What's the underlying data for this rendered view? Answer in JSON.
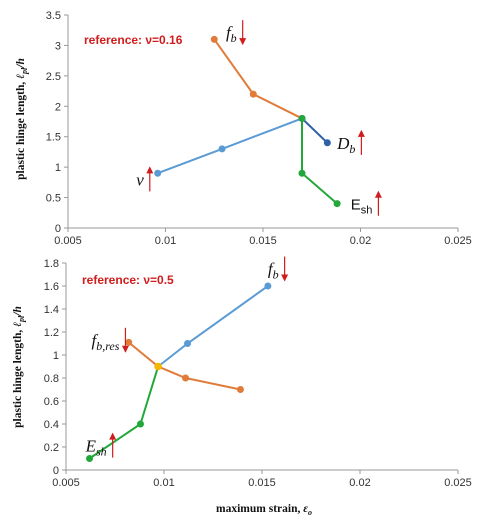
{
  "chart_data": [
    {
      "type": "line",
      "ylabel": "plastic hinge length, ℓpl/h",
      "reference": "reference: ν=0.16",
      "xlim": [
        0.005,
        0.025
      ],
      "ylim": [
        0,
        3.5
      ],
      "xticks": [
        "0.005",
        "0.01",
        "0.015",
        "0.02",
        "0.025"
      ],
      "yticks": [
        "0",
        "0.5",
        "1",
        "1.5",
        "2",
        "2.5",
        "3",
        "3.5"
      ],
      "series": [
        {
          "name": "fb",
          "color": "#e07b39",
          "x": [
            0.0125,
            0.0145,
            0.017
          ],
          "y": [
            3.1,
            2.2,
            1.8
          ]
        },
        {
          "name": "ν",
          "color": "#5b9bd5",
          "x": [
            0.0096,
            0.0129,
            0.017
          ],
          "y": [
            0.9,
            1.3,
            1.8
          ]
        },
        {
          "name": "Db",
          "color": "#2e5fa8",
          "x": [
            0.017,
            0.0183
          ],
          "y": [
            1.8,
            1.4
          ]
        },
        {
          "name": "Esh",
          "color": "#22a83a",
          "x": [
            0.017,
            0.017,
            0.0188
          ],
          "y": [
            1.8,
            0.9,
            0.4
          ]
        }
      ],
      "annotations": [
        {
          "text": "f",
          "sub": "b",
          "style": "italic",
          "arrow": "down",
          "x": 0.0131,
          "y": 3.12
        },
        {
          "text": "D",
          "sub": "b",
          "style": "italic",
          "arrow": "up",
          "x": 0.0188,
          "y": 1.3
        },
        {
          "text": "ν",
          "sub": "",
          "style": "italic",
          "arrow": "up",
          "x": 0.0085,
          "y": 0.7
        },
        {
          "text": "E",
          "sub": "sh",
          "style": "sans",
          "arrow": "up",
          "x": 0.0195,
          "y": 0.3
        }
      ]
    },
    {
      "type": "line",
      "ylabel": "plastic hinge length, ℓpl/h",
      "xlabel": "maximum strain, εo",
      "reference": "reference: ν=0.5",
      "xlim": [
        0.005,
        0.025
      ],
      "ylim": [
        0,
        1.8
      ],
      "xticks": [
        "0.005",
        "0.01",
        "0.015",
        "0.02",
        "0.025"
      ],
      "yticks": [
        "0",
        "0.2",
        "0.4",
        "0.6",
        "0.8",
        "1",
        "1.2",
        "1.4",
        "1.6",
        "1.8"
      ],
      "series": [
        {
          "name": "fb",
          "color": "#5b9bd5",
          "x": [
            0.0097,
            0.0112,
            0.0153
          ],
          "y": [
            0.9,
            1.1,
            1.6
          ]
        },
        {
          "name": "fb,res",
          "color": "#e07b39",
          "x": [
            0.0082,
            0.0097,
            0.0111,
            0.0139
          ],
          "y": [
            1.11,
            0.9,
            0.8,
            0.7
          ]
        },
        {
          "name": "Esh",
          "color": "#22a83a",
          "x": [
            0.0062,
            0.0088,
            0.0097
          ],
          "y": [
            0.1,
            0.4,
            0.9
          ]
        }
      ],
      "mid_point": {
        "x": 0.0097,
        "y": 0.9,
        "color": "#f5b800"
      },
      "annotations": [
        {
          "text": "f",
          "sub": "b",
          "style": "italic",
          "arrow": "down",
          "x": 0.0153,
          "y": 1.7
        },
        {
          "text": "f",
          "sub": "b,res",
          "style": "italic",
          "arrow": "down",
          "x": 0.0063,
          "y": 1.08
        },
        {
          "text": "E",
          "sub": "sh",
          "style": "italic",
          "arrow": "up",
          "x": 0.006,
          "y": 0.16
        }
      ]
    }
  ]
}
